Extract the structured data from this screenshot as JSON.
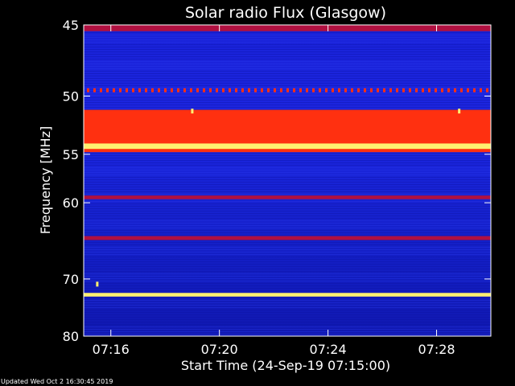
{
  "chart_data": {
    "type": "heatmap",
    "title": "Solar radio Flux (Glasgow)",
    "xlabel": "Start Time (24-Sep-19 07:15:00)",
    "ylabel": "Frequency [MHz]",
    "x_ticks": [
      "07:16",
      "07:20",
      "07:24",
      "07:28"
    ],
    "y_ticks": [
      45,
      50,
      55,
      60,
      70,
      80
    ],
    "xlim": [
      "07:15:00",
      "07:30:00"
    ],
    "ylim_mhz": [
      45,
      80
    ],
    "y_scale": "reciprocal",
    "colors": {
      "low": "#0a14d8",
      "mid": "#b01040",
      "high": "#ff3010",
      "peak": "#fff070"
    },
    "bands": [
      {
        "f_start": 45.0,
        "f_end": 45.4,
        "level": "mid"
      },
      {
        "f_start": 49.4,
        "f_end": 49.7,
        "level": "high",
        "pattern": "dotted"
      },
      {
        "f_start": 51.1,
        "f_end": 54.8,
        "level": "high"
      },
      {
        "f_start": 54.0,
        "f_end": 54.5,
        "level": "peak"
      },
      {
        "f_start": 59.2,
        "f_end": 59.6,
        "level": "mid"
      },
      {
        "f_start": 64.0,
        "f_end": 64.5,
        "level": "mid"
      },
      {
        "f_start": 72.2,
        "f_end": 72.8,
        "level": "peak"
      }
    ],
    "spots": [
      {
        "time": "07:19:00",
        "f": 51.2,
        "level": "peak"
      },
      {
        "time": "07:28:50",
        "f": 51.2,
        "level": "peak"
      },
      {
        "time": "07:15:30",
        "f": 70.8,
        "level": "peak"
      }
    ]
  },
  "footer": {
    "updated_text": "Updated Wed Oct  2 16:30:45 2019"
  }
}
